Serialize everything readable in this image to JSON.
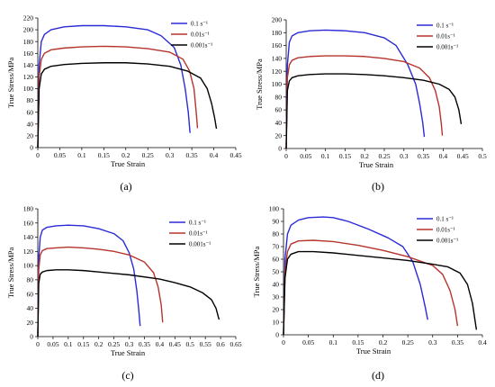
{
  "chart_data": [
    {
      "type": "line",
      "panel": "(a)",
      "xlabel": "True Strain",
      "ylabel": "True Stress/MPa",
      "xlim": [
        0,
        0.45
      ],
      "ylim": [
        0,
        220
      ],
      "xticks": [
        0,
        0.05,
        0.1,
        0.15,
        0.2,
        0.25,
        0.3,
        0.35,
        0.4,
        0.45
      ],
      "xtick_labels": [
        "0",
        "0.05",
        "0.1",
        "0.15",
        "0.2",
        "0.25",
        "0.3",
        "0.35",
        "0.4",
        "0.45"
      ],
      "yticks": [
        0,
        20,
        40,
        60,
        80,
        100,
        120,
        140,
        160,
        180,
        200,
        220
      ],
      "ytick_labels": [
        "0",
        "20",
        "40",
        "60",
        "80",
        "100",
        "120",
        "140",
        "160",
        "180",
        "200",
        "220"
      ],
      "legend_position": "top-right",
      "series": [
        {
          "name": "0.1 s⁻¹",
          "color": "#2b2bd6",
          "x": [
            0,
            0.003,
            0.008,
            0.015,
            0.03,
            0.06,
            0.1,
            0.15,
            0.2,
            0.25,
            0.28,
            0.31,
            0.325,
            0.335,
            0.342,
            0.346
          ],
          "y": [
            0,
            140,
            180,
            192,
            200,
            205,
            207,
            207,
            205,
            200,
            190,
            170,
            140,
            100,
            60,
            25
          ]
        },
        {
          "name": "0.01s⁻¹",
          "color": "#b5342c",
          "x": [
            0,
            0.003,
            0.008,
            0.015,
            0.03,
            0.06,
            0.1,
            0.15,
            0.2,
            0.25,
            0.3,
            0.33,
            0.345,
            0.355,
            0.36,
            0.363
          ],
          "y": [
            0,
            120,
            150,
            160,
            166,
            169,
            171,
            172,
            171,
            168,
            162,
            150,
            130,
            100,
            60,
            33
          ]
        },
        {
          "name": "0.001s⁻¹",
          "color": "#000000",
          "x": [
            0,
            0.003,
            0.008,
            0.015,
            0.03,
            0.06,
            0.1,
            0.15,
            0.2,
            0.25,
            0.3,
            0.34,
            0.37,
            0.385,
            0.395,
            0.402,
            0.406
          ],
          "y": [
            0,
            100,
            125,
            133,
            138,
            141,
            143,
            144,
            144,
            142,
            138,
            130,
            118,
            100,
            75,
            50,
            32
          ]
        }
      ]
    },
    {
      "type": "line",
      "panel": "(b)",
      "xlabel": "True Strain",
      "ylabel": "True Stress/MPa",
      "xlim": [
        0,
        0.5
      ],
      "ylim": [
        0,
        200
      ],
      "xticks": [
        0,
        0.05,
        0.1,
        0.15,
        0.2,
        0.25,
        0.3,
        0.35,
        0.4,
        0.45,
        0.5
      ],
      "xtick_labels": [
        "0",
        "0.05",
        "0.1",
        "0.15",
        "0.2",
        "0.25",
        "0.3",
        "0.35",
        "0.4",
        "0.45",
        "0.5"
      ],
      "yticks": [
        0,
        20,
        40,
        60,
        80,
        100,
        120,
        140,
        160,
        180,
        200
      ],
      "ytick_labels": [
        "0",
        "20",
        "40",
        "60",
        "80",
        "100",
        "120",
        "140",
        "160",
        "180",
        "200"
      ],
      "legend_position": "top-right",
      "series": [
        {
          "name": "0.1 s⁻¹",
          "color": "#2b2bd6",
          "x": [
            0,
            0.003,
            0.008,
            0.015,
            0.03,
            0.06,
            0.1,
            0.15,
            0.2,
            0.25,
            0.28,
            0.31,
            0.33,
            0.34,
            0.348,
            0.352
          ],
          "y": [
            0,
            130,
            165,
            175,
            180,
            183,
            184,
            183,
            180,
            172,
            160,
            130,
            100,
            70,
            40,
            18
          ]
        },
        {
          "name": "0.01s⁻¹",
          "color": "#b5342c",
          "x": [
            0,
            0.003,
            0.008,
            0.015,
            0.03,
            0.06,
            0.1,
            0.15,
            0.2,
            0.25,
            0.3,
            0.34,
            0.365,
            0.38,
            0.39,
            0.395,
            0.398
          ],
          "y": [
            0,
            110,
            130,
            137,
            141,
            143,
            144,
            144,
            143,
            140,
            135,
            125,
            110,
            90,
            65,
            40,
            20
          ]
        },
        {
          "name": "0.001s⁻¹",
          "color": "#000000",
          "x": [
            0,
            0.003,
            0.008,
            0.015,
            0.03,
            0.06,
            0.1,
            0.15,
            0.2,
            0.25,
            0.3,
            0.35,
            0.39,
            0.415,
            0.43,
            0.44,
            0.446
          ],
          "y": [
            0,
            90,
            105,
            110,
            113,
            115,
            116,
            116,
            115,
            113,
            110,
            106,
            100,
            92,
            80,
            60,
            38
          ]
        }
      ]
    },
    {
      "type": "line",
      "panel": "(c)",
      "xlabel": "True Strain",
      "ylabel": "True Stress/MPa",
      "xlim": [
        0,
        0.65
      ],
      "ylim": [
        0,
        180
      ],
      "xticks": [
        0,
        0.05,
        0.1,
        0.15,
        0.2,
        0.25,
        0.3,
        0.35,
        0.4,
        0.45,
        0.5,
        0.55,
        0.6,
        0.65
      ],
      "xtick_labels": [
        "0",
        "0.05",
        "0.1",
        "0.15",
        "0.2",
        "0.25",
        "0.3",
        "0.35",
        "0.4",
        "0.45",
        "0.5",
        "0.55",
        "0.6",
        "0.65"
      ],
      "yticks": [
        0,
        20,
        40,
        60,
        80,
        100,
        120,
        140,
        160,
        180
      ],
      "ytick_labels": [
        "0",
        "20",
        "40",
        "60",
        "80",
        "100",
        "120",
        "140",
        "160",
        "180"
      ],
      "legend_position": "top-right",
      "series": [
        {
          "name": "0.1 s⁻¹",
          "color": "#2b2bd6",
          "x": [
            0,
            0.003,
            0.008,
            0.015,
            0.03,
            0.06,
            0.1,
            0.15,
            0.2,
            0.25,
            0.28,
            0.3,
            0.315,
            0.325,
            0.332,
            0.336
          ],
          "y": [
            0,
            110,
            140,
            150,
            154,
            156,
            157,
            156,
            152,
            145,
            135,
            118,
            95,
            65,
            35,
            15
          ]
        },
        {
          "name": "0.01s⁻¹",
          "color": "#b5342c",
          "x": [
            0,
            0.003,
            0.008,
            0.015,
            0.03,
            0.06,
            0.1,
            0.15,
            0.2,
            0.25,
            0.3,
            0.35,
            0.38,
            0.395,
            0.405,
            0.41
          ],
          "y": [
            0,
            95,
            115,
            121,
            124,
            125,
            126,
            125,
            123,
            120,
            115,
            105,
            90,
            70,
            45,
            20
          ]
        },
        {
          "name": "0.001s⁻¹",
          "color": "#000000",
          "x": [
            0,
            0.003,
            0.008,
            0.015,
            0.03,
            0.06,
            0.1,
            0.15,
            0.2,
            0.3,
            0.4,
            0.45,
            0.5,
            0.54,
            0.57,
            0.585,
            0.595
          ],
          "y": [
            0,
            75,
            88,
            91,
            93,
            94,
            94,
            93,
            91,
            87,
            81,
            76,
            70,
            62,
            52,
            40,
            24
          ]
        }
      ]
    },
    {
      "type": "line",
      "panel": "(d)",
      "xlabel": "True Strain",
      "ylabel": "True Stress/MPa",
      "xlim": [
        0,
        0.4
      ],
      "ylim": [
        0,
        100
      ],
      "xticks": [
        0,
        0.05,
        0.1,
        0.15,
        0.2,
        0.25,
        0.3,
        0.35,
        0.4
      ],
      "xtick_labels": [
        "0",
        "0.05",
        "0.1",
        "0.15",
        "0.2",
        "0.25",
        "0.3",
        "0.35",
        "0.4"
      ],
      "yticks": [
        0,
        10,
        20,
        30,
        40,
        50,
        60,
        70,
        80,
        90,
        100
      ],
      "ytick_labels": [
        "0",
        "10",
        "20",
        "30",
        "40",
        "50",
        "60",
        "70",
        "80",
        "90",
        "100"
      ],
      "legend_position": "top-right",
      "series": [
        {
          "name": "0.1 s⁻¹",
          "color": "#2b2bd6",
          "x": [
            0,
            0.003,
            0.008,
            0.015,
            0.03,
            0.05,
            0.08,
            0.1,
            0.13,
            0.17,
            0.21,
            0.24,
            0.26,
            0.275,
            0.285,
            0.29
          ],
          "y": [
            0,
            60,
            80,
            87,
            91,
            93,
            93.5,
            93,
            90,
            84,
            77,
            70,
            58,
            40,
            22,
            12
          ]
        },
        {
          "name": "0.01s⁻¹",
          "color": "#b5342c",
          "x": [
            0,
            0.003,
            0.008,
            0.015,
            0.03,
            0.06,
            0.1,
            0.15,
            0.2,
            0.25,
            0.3,
            0.32,
            0.335,
            0.345,
            0.35
          ],
          "y": [
            0,
            50,
            66,
            72,
            74.5,
            75,
            74,
            71,
            67,
            62,
            55,
            48,
            35,
            20,
            7
          ]
        },
        {
          "name": "0.001s⁻¹",
          "color": "#000000",
          "x": [
            0,
            0.003,
            0.008,
            0.015,
            0.03,
            0.06,
            0.1,
            0.15,
            0.2,
            0.25,
            0.3,
            0.33,
            0.355,
            0.37,
            0.38,
            0.388
          ],
          "y": [
            0,
            45,
            60,
            64,
            66,
            66,
            65,
            63,
            61,
            59,
            56,
            54,
            49,
            40,
            25,
            4
          ]
        }
      ]
    }
  ]
}
